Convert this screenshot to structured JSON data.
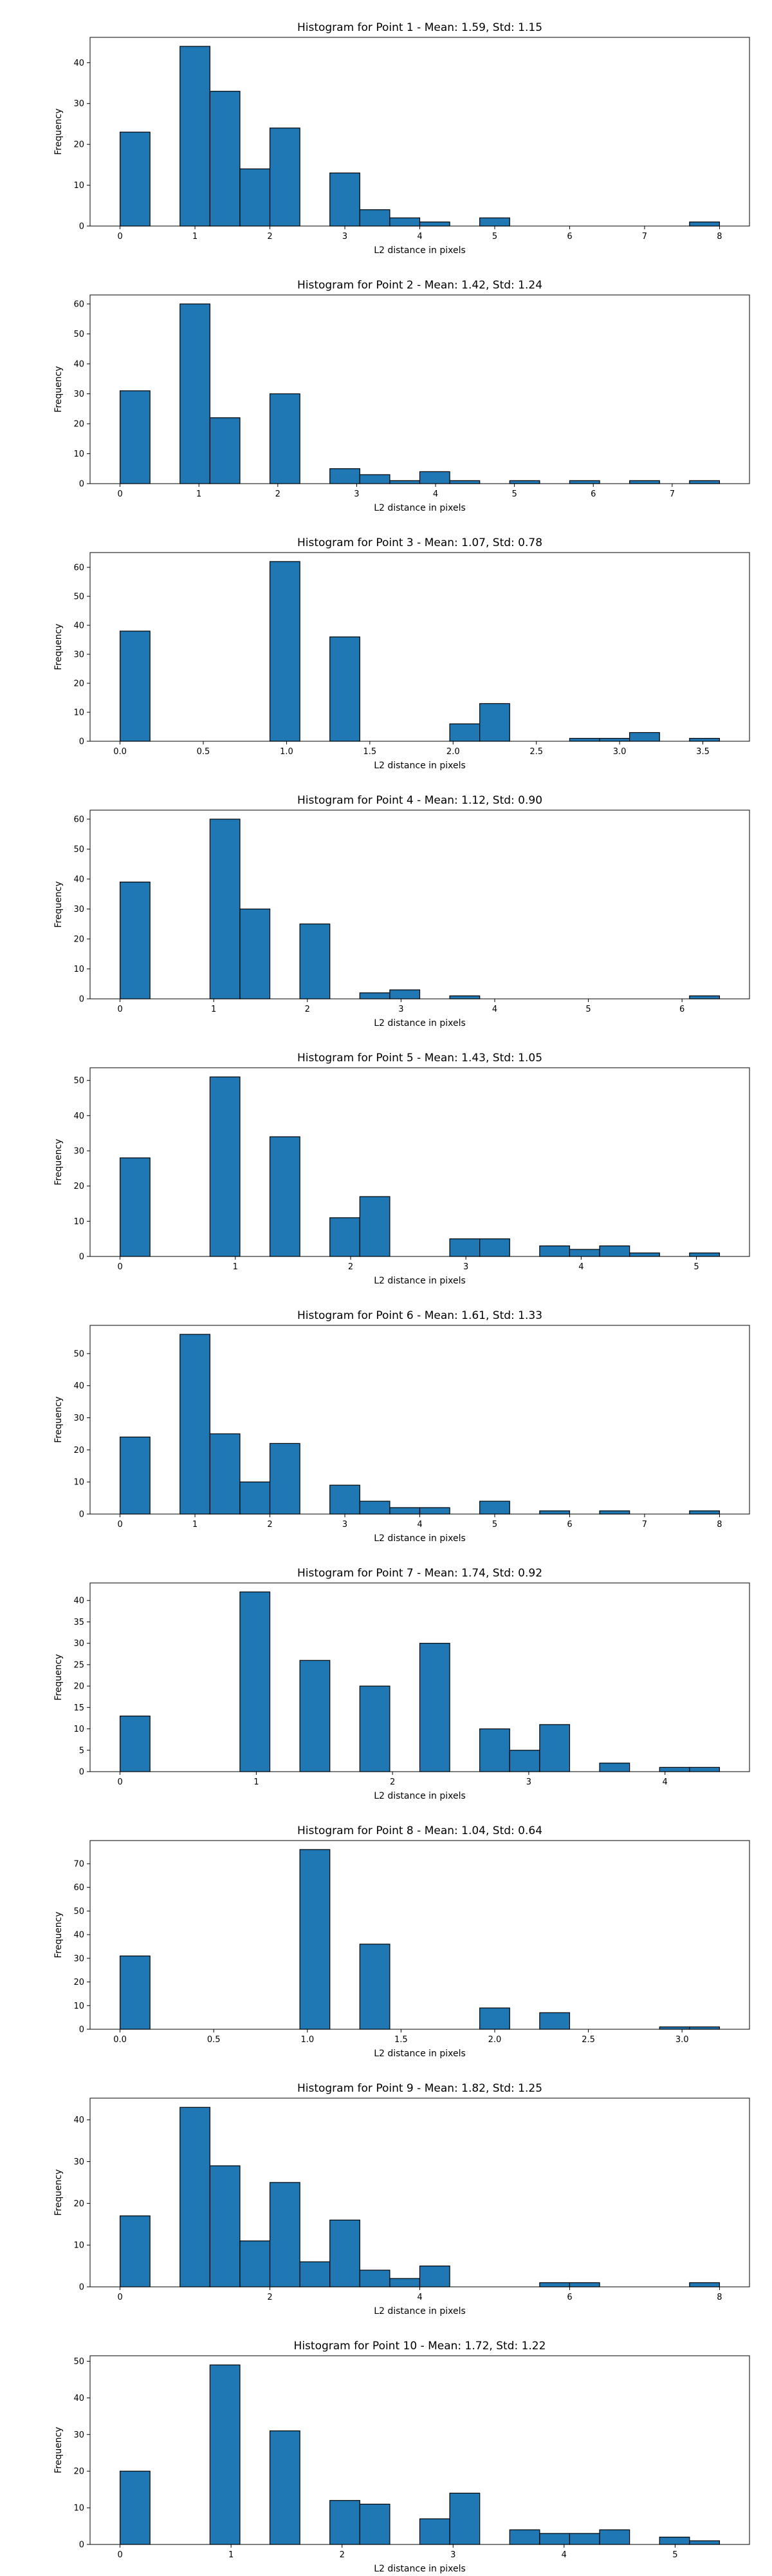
{
  "chart_data": [
    {
      "type": "bar",
      "title": "Histogram for Point 1 - Mean: 1.59, Std: 1.15",
      "xlabel": "L2 distance in pixels",
      "ylabel": "Frequency",
      "xlim": [
        -0.4,
        8.4
      ],
      "ylim": [
        0,
        46.2
      ],
      "xticks": [
        0,
        1,
        2,
        3,
        4,
        5,
        6,
        7,
        8
      ],
      "yticks": [
        0,
        10,
        20,
        30,
        40
      ],
      "bins": [
        {
          "x0": 0.0,
          "x1": 0.4,
          "count": 23
        },
        {
          "x0": 0.8,
          "x1": 1.2,
          "count": 44
        },
        {
          "x0": 1.2,
          "x1": 1.6,
          "count": 33
        },
        {
          "x0": 1.6,
          "x1": 2.0,
          "count": 14
        },
        {
          "x0": 2.0,
          "x1": 2.4,
          "count": 24
        },
        {
          "x0": 2.8,
          "x1": 3.2,
          "count": 13
        },
        {
          "x0": 3.2,
          "x1": 3.6,
          "count": 4
        },
        {
          "x0": 3.6,
          "x1": 4.0,
          "count": 2
        },
        {
          "x0": 4.0,
          "x1": 4.4,
          "count": 1
        },
        {
          "x0": 4.8,
          "x1": 5.2,
          "count": 2
        },
        {
          "x0": 7.6,
          "x1": 8.0,
          "count": 1
        }
      ],
      "bar_color": "#1f77b4",
      "edge_color": "#000000",
      "grid": false,
      "legend": false
    },
    {
      "type": "bar",
      "title": "Histogram for Point 2 - Mean: 1.42, Std: 1.24",
      "xlabel": "L2 distance in pixels",
      "ylabel": "Frequency",
      "xlim": [
        -0.38,
        7.98
      ],
      "ylim": [
        0,
        63
      ],
      "xticks": [
        0,
        1,
        2,
        3,
        4,
        5,
        6,
        7
      ],
      "yticks": [
        0,
        10,
        20,
        30,
        40,
        50,
        60
      ],
      "bins": [
        {
          "x0": 0.0,
          "x1": 0.38,
          "count": 31
        },
        {
          "x0": 0.76,
          "x1": 1.14,
          "count": 60
        },
        {
          "x0": 1.14,
          "x1": 1.52,
          "count": 22
        },
        {
          "x0": 1.9,
          "x1": 2.28,
          "count": 30
        },
        {
          "x0": 2.66,
          "x1": 3.04,
          "count": 5
        },
        {
          "x0": 3.04,
          "x1": 3.42,
          "count": 3
        },
        {
          "x0": 3.42,
          "x1": 3.8,
          "count": 1
        },
        {
          "x0": 3.8,
          "x1": 4.18,
          "count": 4
        },
        {
          "x0": 4.18,
          "x1": 4.56,
          "count": 1
        },
        {
          "x0": 4.94,
          "x1": 5.32,
          "count": 1
        },
        {
          "x0": 5.7,
          "x1": 6.08,
          "count": 1
        },
        {
          "x0": 6.46,
          "x1": 6.84,
          "count": 1
        },
        {
          "x0": 7.22,
          "x1": 7.6,
          "count": 1
        }
      ],
      "bar_color": "#1f77b4",
      "edge_color": "#000000",
      "grid": false,
      "legend": false
    },
    {
      "type": "bar",
      "title": "Histogram for Point 3 - Mean: 1.07, Std: 0.78",
      "xlabel": "L2 distance in pixels",
      "ylabel": "Frequency",
      "xlim": [
        -0.18,
        3.78
      ],
      "ylim": [
        0,
        65.1
      ],
      "xticks": [
        0.0,
        0.5,
        1.0,
        1.5,
        2.0,
        2.5,
        3.0,
        3.5
      ],
      "xtick_labels": [
        "0.0",
        "0.5",
        "1.0",
        "1.5",
        "2.0",
        "2.5",
        "3.0",
        "3.5"
      ],
      "yticks": [
        0,
        10,
        20,
        30,
        40,
        50,
        60
      ],
      "bins": [
        {
          "x0": 0.0,
          "x1": 0.18,
          "count": 38
        },
        {
          "x0": 0.9,
          "x1": 1.08,
          "count": 62
        },
        {
          "x0": 1.26,
          "x1": 1.44,
          "count": 36
        },
        {
          "x0": 1.98,
          "x1": 2.16,
          "count": 6
        },
        {
          "x0": 2.16,
          "x1": 2.34,
          "count": 13
        },
        {
          "x0": 2.7,
          "x1": 2.88,
          "count": 1
        },
        {
          "x0": 2.88,
          "x1": 3.06,
          "count": 1
        },
        {
          "x0": 3.06,
          "x1": 3.24,
          "count": 3
        },
        {
          "x0": 3.42,
          "x1": 3.6,
          "count": 1
        }
      ],
      "bar_color": "#1f77b4",
      "edge_color": "#000000",
      "grid": false,
      "legend": false
    },
    {
      "type": "bar",
      "title": "Histogram for Point 4 - Mean: 1.12, Std: 0.90",
      "xlabel": "L2 distance in pixels",
      "ylabel": "Frequency",
      "xlim": [
        -0.32,
        6.72
      ],
      "ylim": [
        0,
        63
      ],
      "xticks": [
        0,
        1,
        2,
        3,
        4,
        5,
        6
      ],
      "yticks": [
        0,
        10,
        20,
        30,
        40,
        50,
        60
      ],
      "bins": [
        {
          "x0": 0.0,
          "x1": 0.32,
          "count": 39
        },
        {
          "x0": 0.96,
          "x1": 1.28,
          "count": 60
        },
        {
          "x0": 1.28,
          "x1": 1.6,
          "count": 30
        },
        {
          "x0": 1.92,
          "x1": 2.24,
          "count": 25
        },
        {
          "x0": 2.56,
          "x1": 2.88,
          "count": 2
        },
        {
          "x0": 2.88,
          "x1": 3.2,
          "count": 3
        },
        {
          "x0": 3.52,
          "x1": 3.84,
          "count": 1
        },
        {
          "x0": 6.08,
          "x1": 6.4,
          "count": 1
        }
      ],
      "bar_color": "#1f77b4",
      "edge_color": "#000000",
      "grid": false,
      "legend": false
    },
    {
      "type": "bar",
      "title": "Histogram for Point 5 - Mean: 1.43, Std: 1.05",
      "xlabel": "L2 distance in pixels",
      "ylabel": "Frequency",
      "xlim": [
        -0.26,
        5.46
      ],
      "ylim": [
        0,
        53.6
      ],
      "xticks": [
        0,
        1,
        2,
        3,
        4,
        5
      ],
      "yticks": [
        0,
        10,
        20,
        30,
        40,
        50
      ],
      "bins": [
        {
          "x0": 0.0,
          "x1": 0.26,
          "count": 28
        },
        {
          "x0": 0.78,
          "x1": 1.04,
          "count": 51
        },
        {
          "x0": 1.3,
          "x1": 1.56,
          "count": 34
        },
        {
          "x0": 1.82,
          "x1": 2.08,
          "count": 11
        },
        {
          "x0": 2.08,
          "x1": 2.34,
          "count": 17
        },
        {
          "x0": 2.86,
          "x1": 3.12,
          "count": 5
        },
        {
          "x0": 3.12,
          "x1": 3.38,
          "count": 5
        },
        {
          "x0": 3.64,
          "x1": 3.9,
          "count": 3
        },
        {
          "x0": 3.9,
          "x1": 4.16,
          "count": 2
        },
        {
          "x0": 4.16,
          "x1": 4.42,
          "count": 3
        },
        {
          "x0": 4.42,
          "x1": 4.68,
          "count": 1
        },
        {
          "x0": 4.94,
          "x1": 5.2,
          "count": 1
        }
      ],
      "bar_color": "#1f77b4",
      "edge_color": "#000000",
      "grid": false,
      "legend": false
    },
    {
      "type": "bar",
      "title": "Histogram for Point 6 - Mean: 1.61, Std: 1.33",
      "xlabel": "L2 distance in pixels",
      "ylabel": "Frequency",
      "xlim": [
        -0.4,
        8.4
      ],
      "ylim": [
        0,
        58.8
      ],
      "xticks": [
        0,
        1,
        2,
        3,
        4,
        5,
        6,
        7,
        8
      ],
      "yticks": [
        0,
        10,
        20,
        30,
        40,
        50
      ],
      "bins": [
        {
          "x0": 0.0,
          "x1": 0.4,
          "count": 24
        },
        {
          "x0": 0.8,
          "x1": 1.2,
          "count": 56
        },
        {
          "x0": 1.2,
          "x1": 1.6,
          "count": 25
        },
        {
          "x0": 1.6,
          "x1": 2.0,
          "count": 10
        },
        {
          "x0": 2.0,
          "x1": 2.4,
          "count": 22
        },
        {
          "x0": 2.8,
          "x1": 3.2,
          "count": 9
        },
        {
          "x0": 3.2,
          "x1": 3.6,
          "count": 4
        },
        {
          "x0": 3.6,
          "x1": 4.0,
          "count": 2
        },
        {
          "x0": 4.0,
          "x1": 4.4,
          "count": 2
        },
        {
          "x0": 4.8,
          "x1": 5.2,
          "count": 4
        },
        {
          "x0": 5.6,
          "x1": 6.0,
          "count": 1
        },
        {
          "x0": 6.4,
          "x1": 6.8,
          "count": 1
        },
        {
          "x0": 7.6,
          "x1": 8.0,
          "count": 1
        }
      ],
      "bar_color": "#1f77b4",
      "edge_color": "#000000",
      "grid": false,
      "legend": false
    },
    {
      "type": "bar",
      "title": "Histogram for Point 7 - Mean: 1.74, Std: 0.92",
      "xlabel": "L2 distance in pixels",
      "ylabel": "Frequency",
      "xlim": [
        -0.22,
        4.62
      ],
      "ylim": [
        0,
        44.1
      ],
      "xticks": [
        0,
        1,
        2,
        3,
        4
      ],
      "yticks": [
        0,
        5,
        10,
        15,
        20,
        25,
        30,
        35,
        40
      ],
      "bins": [
        {
          "x0": 0.0,
          "x1": 0.22,
          "count": 13
        },
        {
          "x0": 0.88,
          "x1": 1.1,
          "count": 42
        },
        {
          "x0": 1.32,
          "x1": 1.54,
          "count": 26
        },
        {
          "x0": 1.76,
          "x1": 1.98,
          "count": 20
        },
        {
          "x0": 2.2,
          "x1": 2.42,
          "count": 30
        },
        {
          "x0": 2.64,
          "x1": 2.86,
          "count": 10
        },
        {
          "x0": 2.86,
          "x1": 3.08,
          "count": 5
        },
        {
          "x0": 3.08,
          "x1": 3.3,
          "count": 11
        },
        {
          "x0": 3.52,
          "x1": 3.74,
          "count": 2
        },
        {
          "x0": 3.96,
          "x1": 4.18,
          "count": 1
        },
        {
          "x0": 4.18,
          "x1": 4.4,
          "count": 1
        }
      ],
      "bar_color": "#1f77b4",
      "edge_color": "#000000",
      "grid": false,
      "legend": false
    },
    {
      "type": "bar",
      "title": "Histogram for Point 8 - Mean: 1.04, Std: 0.64",
      "xlabel": "L2 distance in pixels",
      "ylabel": "Frequency",
      "xlim": [
        -0.16,
        3.36
      ],
      "ylim": [
        0,
        79.8
      ],
      "xticks": [
        0.0,
        0.5,
        1.0,
        1.5,
        2.0,
        2.5,
        3.0
      ],
      "xtick_labels": [
        "0.0",
        "0.5",
        "1.0",
        "1.5",
        "2.0",
        "2.5",
        "3.0"
      ],
      "yticks": [
        0,
        10,
        20,
        30,
        40,
        50,
        60,
        70
      ],
      "bins": [
        {
          "x0": 0.0,
          "x1": 0.16,
          "count": 31
        },
        {
          "x0": 0.96,
          "x1": 1.12,
          "count": 76
        },
        {
          "x0": 1.28,
          "x1": 1.44,
          "count": 36
        },
        {
          "x0": 1.92,
          "x1": 2.08,
          "count": 9
        },
        {
          "x0": 2.24,
          "x1": 2.4,
          "count": 7
        },
        {
          "x0": 2.88,
          "x1": 3.04,
          "count": 1
        },
        {
          "x0": 3.04,
          "x1": 3.2,
          "count": 1
        }
      ],
      "bar_color": "#1f77b4",
      "edge_color": "#000000",
      "grid": false,
      "legend": false
    },
    {
      "type": "bar",
      "title": "Histogram for Point 9 - Mean: 1.82, Std: 1.25",
      "xlabel": "L2 distance in pixels",
      "ylabel": "Frequency",
      "xlim": [
        -0.4,
        8.4
      ],
      "ylim": [
        0,
        45.2
      ],
      "xticks": [
        0,
        2,
        4,
        6,
        8
      ],
      "yticks": [
        0,
        10,
        20,
        30,
        40
      ],
      "bins": [
        {
          "x0": 0.0,
          "x1": 0.4,
          "count": 17
        },
        {
          "x0": 0.8,
          "x1": 1.2,
          "count": 43
        },
        {
          "x0": 1.2,
          "x1": 1.6,
          "count": 29
        },
        {
          "x0": 1.6,
          "x1": 2.0,
          "count": 11
        },
        {
          "x0": 2.0,
          "x1": 2.4,
          "count": 25
        },
        {
          "x0": 2.4,
          "x1": 2.8,
          "count": 6
        },
        {
          "x0": 2.8,
          "x1": 3.2,
          "count": 16
        },
        {
          "x0": 3.2,
          "x1": 3.6,
          "count": 4
        },
        {
          "x0": 3.6,
          "x1": 4.0,
          "count": 2
        },
        {
          "x0": 4.0,
          "x1": 4.4,
          "count": 5
        },
        {
          "x0": 5.6,
          "x1": 6.0,
          "count": 1
        },
        {
          "x0": 6.0,
          "x1": 6.4,
          "count": 1
        },
        {
          "x0": 7.6,
          "x1": 8.0,
          "count": 1
        }
      ],
      "bar_color": "#1f77b4",
      "edge_color": "#000000",
      "grid": false,
      "legend": false
    },
    {
      "type": "bar",
      "title": "Histogram for Point 10 - Mean: 1.72, Std: 1.22",
      "xlabel": "L2 distance in pixels",
      "ylabel": "Frequency",
      "xlim": [
        -0.27,
        5.67
      ],
      "ylim": [
        0,
        51.5
      ],
      "xticks": [
        0,
        1,
        2,
        3,
        4,
        5
      ],
      "yticks": [
        0,
        10,
        20,
        30,
        40,
        50
      ],
      "bins": [
        {
          "x0": 0.0,
          "x1": 0.27,
          "count": 20
        },
        {
          "x0": 0.81,
          "x1": 1.08,
          "count": 49
        },
        {
          "x0": 1.35,
          "x1": 1.62,
          "count": 31
        },
        {
          "x0": 1.89,
          "x1": 2.16,
          "count": 12
        },
        {
          "x0": 2.16,
          "x1": 2.43,
          "count": 11
        },
        {
          "x0": 2.7,
          "x1": 2.97,
          "count": 7
        },
        {
          "x0": 2.97,
          "x1": 3.24,
          "count": 14
        },
        {
          "x0": 3.51,
          "x1": 3.78,
          "count": 4
        },
        {
          "x0": 3.78,
          "x1": 4.05,
          "count": 3
        },
        {
          "x0": 4.05,
          "x1": 4.32,
          "count": 3
        },
        {
          "x0": 4.32,
          "x1": 4.59,
          "count": 4
        },
        {
          "x0": 4.86,
          "x1": 5.13,
          "count": 2
        },
        {
          "x0": 5.13,
          "x1": 5.4,
          "count": 1
        }
      ],
      "bar_color": "#1f77b4",
      "edge_color": "#000000",
      "grid": false,
      "legend": false
    }
  ]
}
